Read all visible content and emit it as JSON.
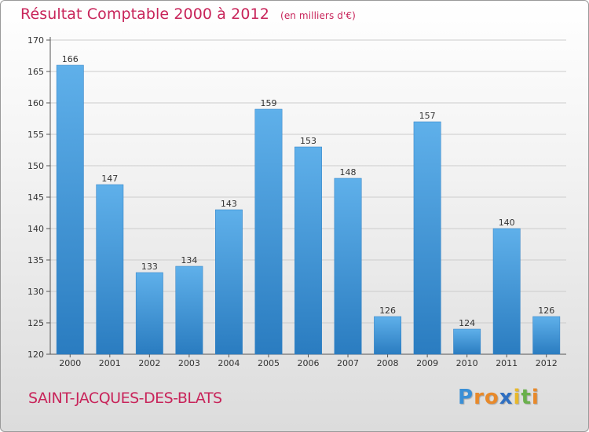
{
  "title": "Résultat Comptable 2000 à 2012",
  "unit_note": "(en milliers d'€)",
  "commune": "SAINT-JACQUES-DES-BLATS",
  "logo": {
    "text": "Proxiti",
    "letters": [
      "P",
      "r",
      "o",
      "x",
      "i",
      "t",
      "i"
    ],
    "colors": [
      "#3a8fd6",
      "#e8892a",
      "#e8892a",
      "#2f6fc1",
      "#e8b82a",
      "#6ab04c",
      "#e8892a"
    ]
  },
  "colors": {
    "title": "#c8245a",
    "bar_top": "#5fb0ea",
    "bar_bottom": "#2a7cc0",
    "grid": "#cccccc"
  },
  "chart_data": {
    "type": "bar",
    "title": "Résultat Comptable 2000 à 2012",
    "xlabel": "",
    "ylabel": "",
    "ylim": [
      120,
      170
    ],
    "yticks": [
      120,
      125,
      130,
      135,
      140,
      145,
      150,
      155,
      160,
      165,
      170
    ],
    "grid": true,
    "categories": [
      "2000",
      "2001",
      "2002",
      "2003",
      "2004",
      "2005",
      "2006",
      "2007",
      "2008",
      "2009",
      "2010",
      "2011",
      "2012"
    ],
    "values": [
      166,
      147,
      133,
      134,
      143,
      159,
      153,
      148,
      126,
      157,
      124,
      140,
      126
    ]
  }
}
